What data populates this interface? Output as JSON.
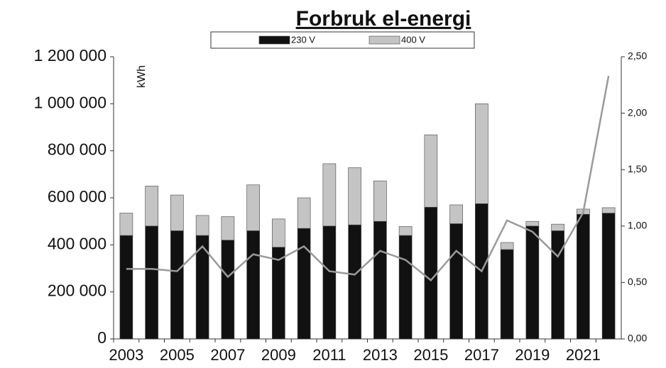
{
  "chart_data": {
    "type": "bar",
    "stacked": true,
    "title": "Forbruk el-energi",
    "y_label": "kWh",
    "categories": [
      "2003",
      null,
      "2005",
      null,
      "2007",
      null,
      "2009",
      null,
      "2011",
      null,
      "2013",
      null,
      "2015",
      null,
      "2017",
      null,
      "2019",
      null,
      "2021",
      null
    ],
    "series": [
      {
        "name": "230 V",
        "color": "#111111",
        "values": [
          440000,
          480000,
          460000,
          440000,
          420000,
          460000,
          390000,
          470000,
          480000,
          485000,
          500000,
          440000,
          560000,
          490000,
          575000,
          380000,
          480000,
          460000,
          530000,
          535000
        ]
      },
      {
        "name": "400 V",
        "color": "#c4c4c4",
        "values": [
          95000,
          170000,
          152000,
          85000,
          100000,
          195000,
          120000,
          130000,
          265000,
          243000,
          172000,
          38000,
          308000,
          80000,
          425000,
          30000,
          20000,
          28000,
          22000,
          23000
        ]
      },
      {
        "type": "line",
        "axis": "y2",
        "color": "#9a9a9a",
        "values": [
          0.62,
          0.62,
          0.6,
          0.82,
          0.55,
          0.75,
          0.7,
          0.82,
          0.6,
          0.57,
          0.78,
          0.7,
          0.52,
          0.78,
          0.6,
          1.05,
          0.95,
          0.73,
          1.12,
          2.33
        ]
      }
    ],
    "ylim": [
      0,
      1200000
    ],
    "yticks": [
      0,
      {
        "value": 200000,
        "label": "200 000"
      },
      {
        "value": 400000,
        "label": "400 000"
      },
      {
        "value": 600000,
        "label": "600 000"
      },
      {
        "value": 800000,
        "label": "800 000"
      },
      {
        "value": 1000000,
        "label": "1 000 000"
      },
      {
        "value": 1200000,
        "label": "1 200 000"
      }
    ],
    "y2lim": [
      0,
      2.5
    ],
    "y2ticks": [
      {
        "value": 0,
        "label": "0,00"
      },
      {
        "value": 0.5,
        "label": "0,50"
      },
      {
        "value": 1,
        "label": "1,00"
      },
      {
        "value": 1.5,
        "label": "1,50"
      },
      {
        "value": 2,
        "label": "2,00"
      },
      {
        "value": 2.5,
        "label": "2,50"
      }
    ],
    "grid": false
  }
}
